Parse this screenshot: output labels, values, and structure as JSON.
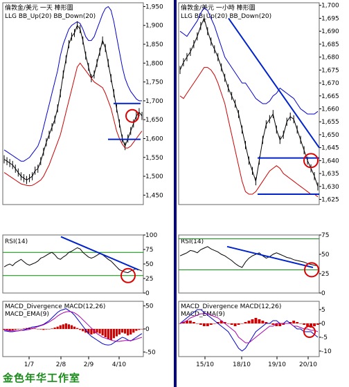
{
  "studio_label": "金色年华工作室",
  "colors": {
    "bb_up": "#0000cc",
    "bb_down": "#cc0000",
    "price": "#000000",
    "trend": "#0022cc",
    "circle": "#dd0000",
    "rsi_levels": "#008800",
    "macd_line": "#0000cc",
    "macd_ema": "#aa00aa",
    "macd_bar": "#cc0000",
    "divider": "#000080"
  },
  "chart_data": [
    {
      "panel": "left-price",
      "type": "line",
      "title": "倫敦金/美元 一天 棒形圖",
      "legend": [
        "LLG",
        "BB_Up(20)",
        "BB_Down(20)"
      ],
      "ylim": [
        1425,
        1960
      ],
      "yticks": [
        "1,950",
        "1,900",
        "1,850",
        "1,800",
        "1,750",
        "1,700",
        "1,650",
        "1,600",
        "1,550",
        "1,500",
        "1,450"
      ],
      "series": [
        {
          "name": "LLG",
          "values": [
            1545,
            1540,
            1535,
            1530,
            1520,
            1510,
            1500,
            1495,
            1490,
            1495,
            1500,
            1515,
            1520,
            1540,
            1565,
            1590,
            1610,
            1630,
            1650,
            1680,
            1720,
            1770,
            1810,
            1850,
            1870,
            1880,
            1900,
            1890,
            1860,
            1820,
            1790,
            1760,
            1770,
            1800,
            1830,
            1860,
            1840,
            1800,
            1760,
            1720,
            1680,
            1640,
            1600,
            1580,
            1600,
            1620,
            1640,
            1660,
            1670,
            1660
          ]
        },
        {
          "name": "BB_Up(20)",
          "values": [
            1570,
            1565,
            1560,
            1555,
            1550,
            1545,
            1540,
            1540,
            1545,
            1550,
            1560,
            1570,
            1580,
            1600,
            1630,
            1660,
            1690,
            1720,
            1750,
            1780,
            1820,
            1850,
            1870,
            1890,
            1900,
            1905,
            1910,
            1905,
            1890,
            1870,
            1860,
            1860,
            1870,
            1890,
            1910,
            1930,
            1945,
            1950,
            1940,
            1910,
            1870,
            1830,
            1790,
            1760,
            1740,
            1725,
            1715,
            1705,
            1700,
            1700
          ]
        },
        {
          "name": "BB_Down(20)",
          "values": [
            1510,
            1505,
            1500,
            1495,
            1490,
            1485,
            1480,
            1478,
            1476,
            1475,
            1476,
            1480,
            1485,
            1490,
            1500,
            1515,
            1530,
            1550,
            1570,
            1590,
            1610,
            1640,
            1670,
            1700,
            1730,
            1760,
            1790,
            1800,
            1790,
            1780,
            1770,
            1760,
            1750,
            1745,
            1740,
            1735,
            1720,
            1700,
            1680,
            1650,
            1620,
            1600,
            1585,
            1575,
            1575,
            1580,
            1590,
            1600,
            1610,
            1620
          ]
        }
      ],
      "annotations": {
        "support": 1598,
        "resistance": 1693
      }
    },
    {
      "panel": "right-price",
      "type": "line",
      "title": "倫敦金/美元 一小時 棒形圖",
      "legend": [
        "LLG",
        "BB_Up(20)",
        "BB_Down(20)"
      ],
      "ylim": [
        1623,
        1701
      ],
      "yticks": [
        "1,700",
        "1,695",
        "1,690",
        "1,685",
        "1,680",
        "1,675",
        "1,670",
        "1,665",
        "1,660",
        "1,655",
        "1,650",
        "1,645",
        "1,640",
        "1,635",
        "1,630",
        "1,625"
      ],
      "series": [
        {
          "name": "LLG",
          "values": [
            1675,
            1678,
            1680,
            1682,
            1685,
            1688,
            1692,
            1695,
            1690,
            1686,
            1683,
            1680,
            1676,
            1672,
            1668,
            1665,
            1662,
            1658,
            1652,
            1646,
            1640,
            1636,
            1632,
            1640,
            1648,
            1654,
            1656,
            1658,
            1652,
            1648,
            1650,
            1655,
            1657,
            1656,
            1652,
            1648,
            1644,
            1640,
            1637,
            1634,
            1630
          ]
        },
        {
          "name": "BB_Up(20)",
          "values": [
            1690,
            1689,
            1688,
            1690,
            1692,
            1694,
            1697,
            1699,
            1698,
            1695,
            1692,
            1688,
            1684,
            1680,
            1678,
            1676,
            1674,
            1672,
            1670,
            1670,
            1668,
            1666,
            1664,
            1663,
            1662,
            1662,
            1663,
            1665,
            1666,
            1668,
            1667,
            1666,
            1665,
            1664,
            1662,
            1660,
            1659,
            1658,
            1658,
            1658,
            1659
          ]
        },
        {
          "name": "BB_Down(20)",
          "values": [
            1665,
            1664,
            1666,
            1668,
            1670,
            1672,
            1674,
            1676,
            1676,
            1675,
            1673,
            1670,
            1666,
            1662,
            1656,
            1650,
            1644,
            1638,
            1632,
            1628,
            1627,
            1627,
            1628,
            1630,
            1632,
            1634,
            1636,
            1637,
            1638,
            1637,
            1635,
            1634,
            1633,
            1632,
            1631,
            1630,
            1629,
            1628,
            1627,
            1627,
            1626
          ]
        }
      ],
      "annotations": {
        "support": 1627,
        "resistance": 1641
      }
    },
    {
      "panel": "left-rsi",
      "type": "line",
      "title": "RSI(14)",
      "ylim": [
        0,
        100
      ],
      "yticks": [
        "100",
        "75",
        "50",
        "25",
        "0"
      ],
      "levels": [
        70,
        30
      ],
      "series": [
        {
          "name": "RSI(14)",
          "values": [
            45,
            48,
            50,
            47,
            52,
            55,
            58,
            54,
            50,
            48,
            50,
            52,
            55,
            60,
            62,
            65,
            68,
            70,
            66,
            60,
            58,
            62,
            65,
            70,
            72,
            75,
            78,
            76,
            70,
            66,
            62,
            60,
            62,
            65,
            68,
            66,
            62,
            58,
            55,
            50,
            45,
            40,
            38,
            36,
            35,
            38,
            40,
            42,
            40,
            38
          ]
        }
      ]
    },
    {
      "panel": "right-rsi",
      "type": "line",
      "title": "RSI(14)",
      "ylim": [
        0,
        75
      ],
      "yticks": [
        "75",
        "50",
        "25",
        "0"
      ],
      "levels": [
        70,
        30
      ],
      "series": [
        {
          "name": "RSI(14)",
          "values": [
            48,
            50,
            52,
            55,
            54,
            52,
            56,
            58,
            60,
            57,
            55,
            53,
            50,
            48,
            45,
            42,
            38,
            35,
            33,
            40,
            45,
            48,
            50,
            52,
            48,
            45,
            47,
            50,
            52,
            50,
            48,
            46,
            45,
            43,
            42,
            41,
            40,
            38,
            37,
            36,
            35
          ]
        }
      ]
    },
    {
      "panel": "left-macd",
      "type": "bar",
      "title": "MACD_Divergence",
      "legend": [
        "MACD_Divergence",
        "MACD(12,26)",
        "MACD_EMA(9)"
      ],
      "ylim": [
        -60,
        60
      ],
      "yticks": [
        "50",
        "0",
        "-50"
      ],
      "series": [
        {
          "name": "MACD_Divergence",
          "values": [
            -2,
            -3,
            -4,
            -3,
            -2,
            -1,
            0,
            1,
            2,
            3,
            2,
            1,
            0,
            -1,
            -2,
            -1,
            0,
            1,
            3,
            5,
            8,
            10,
            12,
            10,
            8,
            5,
            2,
            -2,
            -5,
            -8,
            -10,
            -12,
            -10,
            -8,
            -10,
            -14,
            -18,
            -22,
            -24,
            -20,
            -16,
            -12,
            -8,
            -10,
            -14,
            -12,
            -8,
            -4,
            -2,
            0
          ]
        },
        {
          "name": "MACD(12,26)",
          "values": [
            -4,
            -5,
            -6,
            -6,
            -5,
            -4,
            -3,
            -2,
            0,
            2,
            4,
            5,
            6,
            8,
            10,
            14,
            18,
            24,
            30,
            36,
            40,
            42,
            44,
            40,
            36,
            30,
            22,
            14,
            6,
            -2,
            -10,
            -16,
            -20,
            -24,
            -28,
            -32,
            -34,
            -35,
            -34,
            -30,
            -26,
            -22,
            -18,
            -20,
            -24,
            -26,
            -22,
            -18,
            -14,
            -10
          ]
        },
        {
          "name": "MACD_EMA(9)",
          "values": [
            -2,
            -3,
            -4,
            -4,
            -4,
            -4,
            -3,
            -3,
            -2,
            -1,
            1,
            3,
            5,
            7,
            9,
            12,
            15,
            19,
            23,
            28,
            32,
            35,
            37,
            38,
            37,
            35,
            31,
            26,
            20,
            14,
            8,
            2,
            -4,
            -10,
            -14,
            -18,
            -20,
            -22,
            -24,
            -26,
            -27,
            -27,
            -26,
            -25,
            -25,
            -25,
            -24,
            -22,
            -20,
            -18
          ]
        }
      ]
    },
    {
      "panel": "right-macd",
      "type": "bar",
      "title": "MACD_Divergence",
      "legend": [
        "MACD_Divergence",
        "MACD(12,26)",
        "MACD_EMA(9)"
      ],
      "ylim": [
        -12,
        8
      ],
      "yticks": [
        "5",
        "0",
        "-5",
        "-10"
      ],
      "series": [
        {
          "name": "MACD_Divergence",
          "values": [
            0,
            0.5,
            1,
            1,
            0.5,
            0,
            -0.5,
            -1,
            -1,
            -0.5,
            0,
            0.5,
            1,
            0.5,
            0,
            -0.5,
            -1,
            -0.5,
            0,
            0.5,
            1,
            1.5,
            2,
            1.5,
            1,
            0.5,
            0,
            -0.5,
            -1,
            -1,
            -0.5,
            0,
            0.5,
            1,
            0.5,
            0,
            -0.5,
            -1,
            -1.5,
            -1,
            -0.5
          ]
        },
        {
          "name": "MACD(12,26)",
          "values": [
            0,
            1,
            2,
            3,
            4,
            5,
            5,
            4,
            3,
            2,
            1,
            0,
            -1,
            -2,
            -3,
            -5,
            -7,
            -9,
            -10,
            -9,
            -7,
            -5,
            -3,
            -2,
            -1,
            0,
            0,
            1,
            1,
            0,
            0,
            1,
            0,
            -1,
            -2,
            -2,
            -3,
            -3,
            -3,
            -4,
            -5
          ]
        },
        {
          "name": "MACD_EMA(9)",
          "values": [
            0,
            0.5,
            1,
            2,
            2.5,
            3,
            3.5,
            3.5,
            3.5,
            3,
            2.5,
            2,
            1,
            0,
            -1,
            -2,
            -3,
            -5,
            -6,
            -7,
            -7,
            -6,
            -5,
            -4,
            -3,
            -2,
            -1,
            -1,
            0,
            0,
            0,
            0,
            0,
            -1,
            -1,
            -1.5,
            -2,
            -2,
            -2.5,
            -2.5,
            -3
          ]
        }
      ]
    }
  ],
  "x_axes": {
    "left": [
      "1/7",
      "2/8",
      "2/9",
      "4/10"
    ],
    "right": [
      "15/10",
      "18/10",
      "19/10",
      "20/10"
    ]
  },
  "macd_legend_right_2": "MACD_EMA(9)"
}
